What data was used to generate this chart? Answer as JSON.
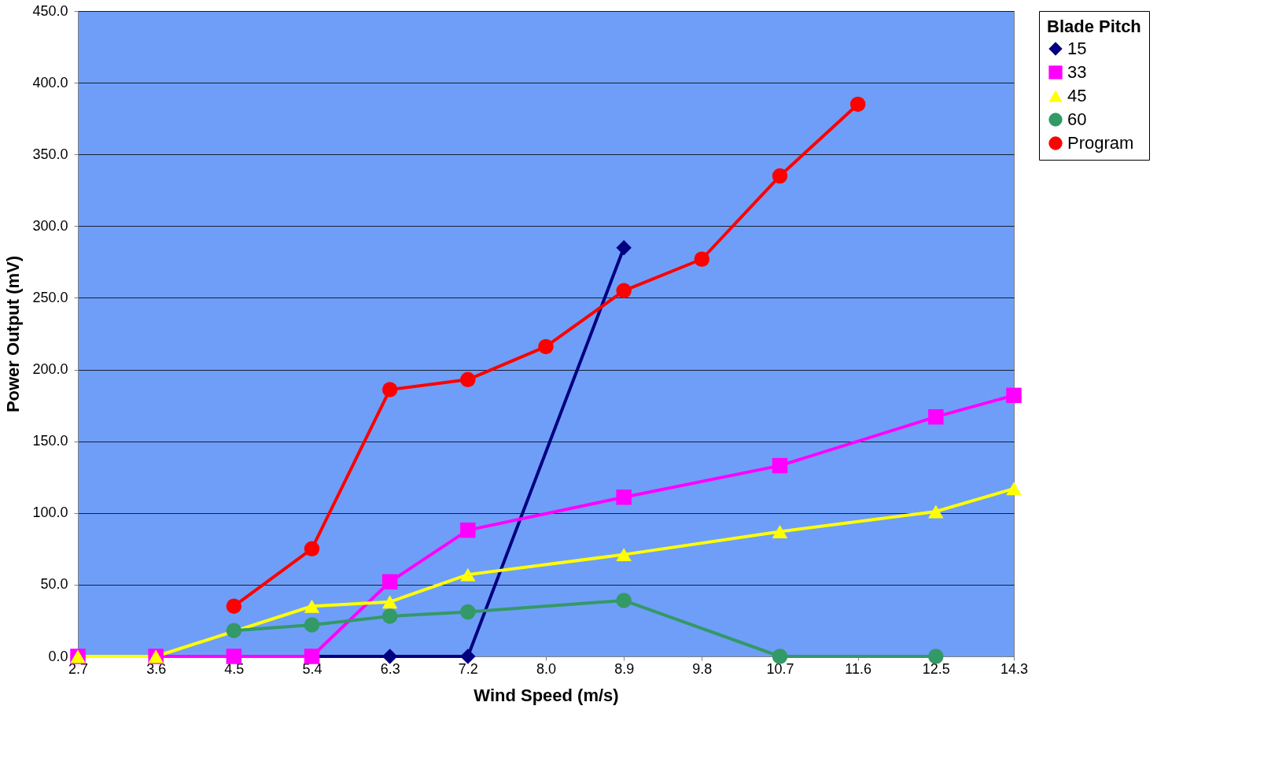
{
  "chart_data": {
    "type": "line",
    "xlabel": "Wind Speed (m/s)",
    "ylabel": "Power Output (mV)",
    "legend_title": "Blade Pitch",
    "categories": [
      "2.7",
      "3.6",
      "4.5",
      "5.4",
      "6.3",
      "7.2",
      "8.0",
      "8.9",
      "9.8",
      "10.7",
      "11.6",
      "12.5",
      "14.3"
    ],
    "series": [
      {
        "name": "15",
        "color": "#000080",
        "marker": "diamond",
        "values": [
          null,
          null,
          null,
          0,
          0,
          0,
          null,
          285,
          null,
          null,
          null,
          null,
          null
        ]
      },
      {
        "name": "33",
        "color": "#ff00ff",
        "marker": "square",
        "values": [
          0,
          0,
          0,
          0,
          52,
          88,
          null,
          111,
          null,
          133,
          null,
          167,
          182
        ]
      },
      {
        "name": "45",
        "color": "#ffff00",
        "marker": "triangle",
        "values": [
          0,
          0,
          null,
          35,
          38,
          57,
          null,
          71,
          null,
          87,
          null,
          101,
          117
        ]
      },
      {
        "name": "60",
        "color": "#339966",
        "marker": "circle",
        "values": [
          null,
          null,
          18,
          22,
          28,
          31,
          null,
          39,
          null,
          0,
          null,
          0,
          null
        ]
      },
      {
        "name": "Program",
        "color": "#ff0000",
        "marker": "circle",
        "values": [
          null,
          null,
          35,
          75,
          186,
          193,
          216,
          255,
          277,
          335,
          385,
          null,
          null
        ]
      }
    ],
    "ylim": [
      0,
      450
    ],
    "yticks": [
      {
        "value": 0,
        "label": "0.0"
      },
      {
        "value": 50,
        "label": "50.0"
      },
      {
        "value": 100,
        "label": "100.0"
      },
      {
        "value": 150,
        "label": "150.0"
      },
      {
        "value": 200,
        "label": "200.0"
      },
      {
        "value": 250,
        "label": "250.0"
      },
      {
        "value": 300,
        "label": "300.0"
      },
      {
        "value": 350,
        "label": "350.0"
      },
      {
        "value": 400,
        "label": "400.0"
      },
      {
        "value": 450,
        "label": "450.0"
      }
    ],
    "grid": "y",
    "legend": "right"
  }
}
